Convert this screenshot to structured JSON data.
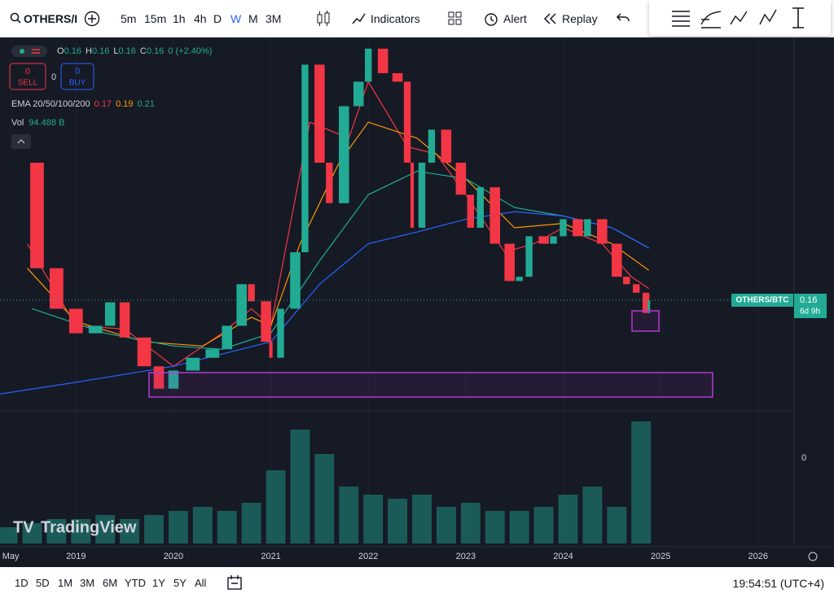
{
  "toolbar": {
    "symbol": "OTHERS/I",
    "intervals": [
      "5m",
      "15m",
      "1h",
      "4h",
      "D",
      "W",
      "M",
      "3M"
    ],
    "active_interval": 5,
    "indicators": "Indicators",
    "alert": "Alert",
    "replay": "Replay"
  },
  "legend": {
    "ohlc": [
      {
        "label": "O",
        "value": "0.16"
      },
      {
        "label": "H",
        "value": "0.16"
      },
      {
        "label": "L",
        "value": "0.16"
      },
      {
        "label": "C",
        "value": "0.16"
      }
    ],
    "change": "0 (+2.40%)",
    "sell_count": "0",
    "sell": "SELL",
    "spread": "0",
    "buy_count": "0",
    "buy": "BUY",
    "ema_label": "EMA 20/50/100/200",
    "ema_values": [
      {
        "value": "0.17",
        "color": "#f23645"
      },
      {
        "value": "0.19",
        "color": "#ff9800"
      },
      {
        "value": "0.21",
        "color": "#22ab94"
      }
    ],
    "vol_label": "Vol",
    "vol_value": "94.488 B"
  },
  "chart_data": {
    "type": "candlestick",
    "watermark": "TradingView",
    "up_color": "#22ab94",
    "down_color": "#f23645",
    "xlim": [
      2018.22,
      2026.37
    ],
    "xticks": [
      {
        "value": 2018.33,
        "label": "May"
      },
      2019,
      2020,
      2021,
      2022,
      2023,
      2024,
      2025,
      2026
    ],
    "ylim": [
      0.06,
      0.405
    ],
    "x": [
      2018.4,
      2018.6,
      2018.8,
      2019.0,
      2019.2,
      2019.35,
      2019.5,
      2019.7,
      2019.85,
      2020.0,
      2020.2,
      2020.4,
      2020.55,
      2020.7,
      2020.8,
      2020.95,
      2021.0,
      2021.1,
      2021.25,
      2021.35,
      2021.5,
      2021.6,
      2021.75,
      2021.9,
      2022.0,
      2022.15,
      2022.3,
      2022.4,
      2022.45,
      2022.55,
      2022.65,
      2022.8,
      2022.95,
      2023.05,
      2023.15,
      2023.3,
      2023.45,
      2023.55,
      2023.65,
      2023.8,
      2023.9,
      2024.0,
      2024.15,
      2024.25,
      2024.4,
      2024.55,
      2024.65,
      2024.75,
      2024.85,
      2024.88
    ],
    "values": [
      0.289,
      0.19,
      0.152,
      0.129,
      0.136,
      0.158,
      0.125,
      0.098,
      0.077,
      0.094,
      0.106,
      0.114,
      0.136,
      0.175,
      0.159,
      0.121,
      0.106,
      0.152,
      0.205,
      0.381,
      0.289,
      0.251,
      0.342,
      0.365,
      0.396,
      0.373,
      0.365,
      0.289,
      0.228,
      0.289,
      0.32,
      0.289,
      0.259,
      0.228,
      0.266,
      0.213,
      0.178,
      0.182,
      0.22,
      0.213,
      0.22,
      0.236,
      0.22,
      0.236,
      0.213,
      0.182,
      0.175,
      0.167,
      0.148,
      0.16
    ],
    "ema": [
      {
        "color": "#f23645",
        "x": [
          2018.5,
          2019.0,
          2019.5,
          2020.0,
          2020.5,
          2020.8,
          2021.0,
          2021.4,
          2021.8,
          2022.0,
          2022.4,
          2022.7,
          2023.0,
          2023.4,
          2023.7,
          2024.0,
          2024.4,
          2024.7,
          2024.88
        ],
        "values": [
          0.213,
          0.136,
          0.133,
          0.098,
          0.129,
          0.152,
          0.136,
          0.327,
          0.312,
          0.365,
          0.304,
          0.297,
          0.259,
          0.205,
          0.213,
          0.228,
          0.213,
          0.182,
          0.171
        ]
      },
      {
        "color": "#ff9800",
        "x": [
          2018.5,
          2019.0,
          2019.7,
          2020.3,
          2020.8,
          2021.0,
          2021.3,
          2021.7,
          2022.0,
          2022.5,
          2023.0,
          2023.5,
          2024.0,
          2024.5,
          2024.88
        ],
        "values": [
          0.19,
          0.14,
          0.121,
          0.117,
          0.144,
          0.136,
          0.213,
          0.289,
          0.327,
          0.312,
          0.274,
          0.228,
          0.232,
          0.213,
          0.188
        ]
      },
      {
        "color": "#22ab94",
        "x": [
          2018.55,
          2019.3,
          2020.0,
          2020.5,
          2021.0,
          2021.5,
          2022.0,
          2022.5,
          2023.0,
          2023.5,
          2024.0,
          2024.5,
          2024.88
        ],
        "values": [
          0.152,
          0.129,
          0.117,
          0.114,
          0.129,
          0.197,
          0.259,
          0.281,
          0.274,
          0.247,
          0.239,
          0.228,
          0.209
        ]
      },
      {
        "color": "#2962ff",
        "x": [
          2018.22,
          2019.0,
          2020.0,
          2021.0,
          2021.5,
          2022.0,
          2022.5,
          2023.0,
          2023.5,
          2024.0,
          2024.5,
          2024.88
        ],
        "values": [
          0.072,
          0.083,
          0.098,
          0.121,
          0.175,
          0.213,
          0.224,
          0.236,
          0.243,
          0.239,
          0.228,
          0.209
        ]
      }
    ],
    "volume": {
      "ylim": [
        0,
        200
      ],
      "yticks": [
        0
      ],
      "color": "#22ab94",
      "x": [
        2018.3,
        2018.55,
        2018.8,
        2019.05,
        2019.3,
        2019.55,
        2019.8,
        2020.05,
        2020.3,
        2020.55,
        2020.8,
        2021.05,
        2021.3,
        2021.55,
        2021.8,
        2022.05,
        2022.3,
        2022.55,
        2022.8,
        2023.05,
        2023.3,
        2023.55,
        2023.8,
        2024.05,
        2024.3,
        2024.55,
        2024.8
      ],
      "values": [
        20,
        25,
        30,
        30,
        35,
        30,
        35,
        40,
        45,
        40,
        50,
        90,
        140,
        110,
        70,
        60,
        55,
        60,
        45,
        50,
        40,
        40,
        45,
        60,
        70,
        45,
        150
      ]
    }
  },
  "price_label": {
    "symbol": "OTHERS/BTC",
    "price": "0.16",
    "countdown": "6d 9h"
  },
  "bottom_bar": {
    "ranges": [
      "1D",
      "5D",
      "1M",
      "3M",
      "6M",
      "YTD",
      "1Y",
      "5Y",
      "All"
    ],
    "time": "19:54:51 (UTC+4)"
  }
}
